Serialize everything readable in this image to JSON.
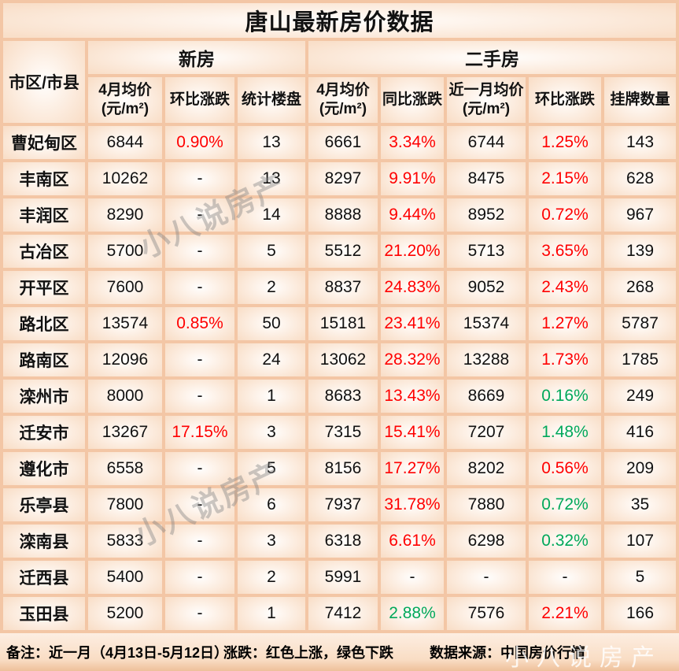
{
  "title": "唐山最新房价数据",
  "colors": {
    "up": "#ff0000",
    "down": "#00a85a",
    "grid": "#f3c6a5",
    "text": "#111111"
  },
  "table": {
    "corner_header": "市区/市县",
    "groups": [
      {
        "label": "新房",
        "span": 3
      },
      {
        "label": "二手房",
        "span": 5
      }
    ],
    "sub_headers": [
      "4月均价 (元/m²)",
      "环比涨跌",
      "统计楼盘",
      "4月均价 (元/m²)",
      "同比涨跌",
      "近一月均价(元/m²)",
      "环比涨跌",
      "挂牌数量"
    ],
    "rows": [
      [
        {
          "t": "曹妃甸区"
        },
        {
          "t": "6844"
        },
        {
          "t": "0.90%",
          "c": "up"
        },
        {
          "t": "13"
        },
        {
          "t": "6661"
        },
        {
          "t": "3.34%",
          "c": "up"
        },
        {
          "t": "6744"
        },
        {
          "t": "1.25%",
          "c": "up"
        },
        {
          "t": "143"
        }
      ],
      [
        {
          "t": "丰南区"
        },
        {
          "t": "10262"
        },
        {
          "t": "-"
        },
        {
          "t": "13"
        },
        {
          "t": "8297"
        },
        {
          "t": "9.91%",
          "c": "up"
        },
        {
          "t": "8475"
        },
        {
          "t": "2.15%",
          "c": "up"
        },
        {
          "t": "628"
        }
      ],
      [
        {
          "t": "丰润区"
        },
        {
          "t": "8290"
        },
        {
          "t": "-"
        },
        {
          "t": "14"
        },
        {
          "t": "8888"
        },
        {
          "t": "9.44%",
          "c": "up"
        },
        {
          "t": "8952"
        },
        {
          "t": "0.72%",
          "c": "up"
        },
        {
          "t": "967"
        }
      ],
      [
        {
          "t": "古冶区"
        },
        {
          "t": "5700"
        },
        {
          "t": "-"
        },
        {
          "t": "5"
        },
        {
          "t": "5512"
        },
        {
          "t": "21.20%",
          "c": "up"
        },
        {
          "t": "5713"
        },
        {
          "t": "3.65%",
          "c": "up"
        },
        {
          "t": "139"
        }
      ],
      [
        {
          "t": "开平区"
        },
        {
          "t": "7600"
        },
        {
          "t": "-"
        },
        {
          "t": "2"
        },
        {
          "t": "8837"
        },
        {
          "t": "24.83%",
          "c": "up"
        },
        {
          "t": "9052"
        },
        {
          "t": "2.43%",
          "c": "up"
        },
        {
          "t": "268"
        }
      ],
      [
        {
          "t": "路北区"
        },
        {
          "t": "13574"
        },
        {
          "t": "0.85%",
          "c": "up"
        },
        {
          "t": "50"
        },
        {
          "t": "15181"
        },
        {
          "t": "23.41%",
          "c": "up"
        },
        {
          "t": "15374"
        },
        {
          "t": "1.27%",
          "c": "up"
        },
        {
          "t": "5787"
        }
      ],
      [
        {
          "t": "路南区"
        },
        {
          "t": "12096"
        },
        {
          "t": "-"
        },
        {
          "t": "24"
        },
        {
          "t": "13062"
        },
        {
          "t": "28.32%",
          "c": "up"
        },
        {
          "t": "13288"
        },
        {
          "t": "1.73%",
          "c": "up"
        },
        {
          "t": "1785"
        }
      ],
      [
        {
          "t": "滦州市"
        },
        {
          "t": "8000"
        },
        {
          "t": "-"
        },
        {
          "t": "1"
        },
        {
          "t": "8683"
        },
        {
          "t": "13.43%",
          "c": "up"
        },
        {
          "t": "8669"
        },
        {
          "t": "0.16%",
          "c": "down"
        },
        {
          "t": "249"
        }
      ],
      [
        {
          "t": "迁安市"
        },
        {
          "t": "13267"
        },
        {
          "t": "17.15%",
          "c": "up"
        },
        {
          "t": "3"
        },
        {
          "t": "7315"
        },
        {
          "t": "15.41%",
          "c": "up"
        },
        {
          "t": "7207"
        },
        {
          "t": "1.48%",
          "c": "down"
        },
        {
          "t": "416"
        }
      ],
      [
        {
          "t": "遵化市"
        },
        {
          "t": "6558"
        },
        {
          "t": "-"
        },
        {
          "t": "5"
        },
        {
          "t": "8156"
        },
        {
          "t": "17.27%",
          "c": "up"
        },
        {
          "t": "8202"
        },
        {
          "t": "0.56%",
          "c": "up"
        },
        {
          "t": "209"
        }
      ],
      [
        {
          "t": "乐亭县"
        },
        {
          "t": "7800"
        },
        {
          "t": "-"
        },
        {
          "t": "6"
        },
        {
          "t": "7937"
        },
        {
          "t": "31.78%",
          "c": "up"
        },
        {
          "t": "7880"
        },
        {
          "t": "0.72%",
          "c": "down"
        },
        {
          "t": "35"
        }
      ],
      [
        {
          "t": "滦南县"
        },
        {
          "t": "5833"
        },
        {
          "t": "-"
        },
        {
          "t": "3"
        },
        {
          "t": "6318"
        },
        {
          "t": "6.61%",
          "c": "up"
        },
        {
          "t": "6298"
        },
        {
          "t": "0.32%",
          "c": "down"
        },
        {
          "t": "107"
        }
      ],
      [
        {
          "t": "迁西县"
        },
        {
          "t": "5400"
        },
        {
          "t": "-"
        },
        {
          "t": "2"
        },
        {
          "t": "5991"
        },
        {
          "t": "-"
        },
        {
          "t": "-"
        },
        {
          "t": "-"
        },
        {
          "t": "5"
        }
      ],
      [
        {
          "t": "玉田县"
        },
        {
          "t": "5200"
        },
        {
          "t": "-"
        },
        {
          "t": "1"
        },
        {
          "t": "7412"
        },
        {
          "t": "2.88%",
          "c": "down"
        },
        {
          "t": "7576"
        },
        {
          "t": "2.21%",
          "c": "up"
        },
        {
          "t": "166"
        }
      ]
    ]
  },
  "footer": {
    "note": "备注：近一月（4月13日-5月12日）",
    "legend": "涨跌：红色上涨，绿色下跌",
    "source": "数据来源：中国房价行情"
  },
  "watermark": {
    "text": "小八说房产"
  },
  "chart_data": {
    "type": "table",
    "title": "唐山最新房价数据",
    "column_groups": [
      {
        "label": "新房",
        "columns": [
          "4月均价(元/m²)",
          "环比涨跌",
          "统计楼盘"
        ]
      },
      {
        "label": "二手房",
        "columns": [
          "4月均价(元/m²)",
          "同比涨跌",
          "近一月均价(元/m²)",
          "环比涨跌",
          "挂牌数量"
        ]
      }
    ],
    "columns": [
      "市区/市县",
      "新房4月均价(元/m²)",
      "新房环比涨跌",
      "统计楼盘",
      "二手房4月均价(元/m²)",
      "同比涨跌",
      "近一月均价(元/m²)",
      "二手房环比涨跌",
      "挂牌数量"
    ],
    "rows": [
      [
        "曹妃甸区",
        6844,
        "0.90%",
        13,
        6661,
        "3.34%",
        6744,
        "1.25%",
        143
      ],
      [
        "丰南区",
        10262,
        "-",
        13,
        8297,
        "9.91%",
        8475,
        "2.15%",
        628
      ],
      [
        "丰润区",
        8290,
        "-",
        14,
        8888,
        "9.44%",
        8952,
        "0.72%",
        967
      ],
      [
        "古冶区",
        5700,
        "-",
        5,
        5512,
        "21.20%",
        5713,
        "3.65%",
        139
      ],
      [
        "开平区",
        7600,
        "-",
        2,
        8837,
        "24.83%",
        9052,
        "2.43%",
        268
      ],
      [
        "路北区",
        13574,
        "0.85%",
        50,
        15181,
        "23.41%",
        15374,
        "1.27%",
        5787
      ],
      [
        "路南区",
        12096,
        "-",
        24,
        13062,
        "28.32%",
        13288,
        "1.73%",
        1785
      ],
      [
        "滦州市",
        8000,
        "-",
        1,
        8683,
        "13.43%",
        8669,
        "0.16%",
        249
      ],
      [
        "迁安市",
        13267,
        "17.15%",
        3,
        7315,
        "15.41%",
        7207,
        "1.48%",
        416
      ],
      [
        "遵化市",
        6558,
        "-",
        5,
        8156,
        "17.27%",
        8202,
        "0.56%",
        209
      ],
      [
        "乐亭县",
        7800,
        "-",
        6,
        7937,
        "31.78%",
        7880,
        "0.72%",
        35
      ],
      [
        "滦南县",
        5833,
        "-",
        3,
        6318,
        "6.61%",
        6298,
        "0.32%",
        107
      ],
      [
        "迁西县",
        5400,
        "-",
        2,
        5991,
        "-",
        "-",
        "-",
        5
      ],
      [
        "玉田县",
        5200,
        "-",
        1,
        7412,
        "2.88%",
        7576,
        "2.21%",
        166
      ]
    ],
    "notes": [
      "备注：近一月（4月13日-5月12日）",
      "涨跌：红色上涨，绿色下跌",
      "数据来源：中国房价行情"
    ],
    "color_coding": {
      "red": "上涨(up)",
      "green": "下跌(down)"
    }
  }
}
